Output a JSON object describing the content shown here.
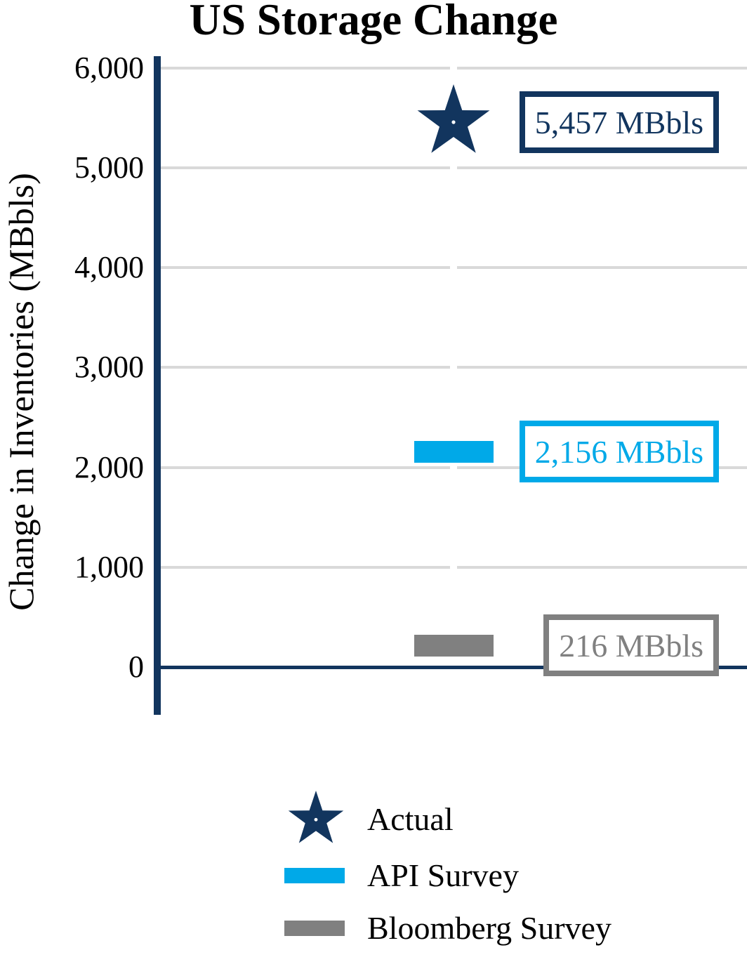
{
  "title": "US Storage Change",
  "chart_data": {
    "type": "bar",
    "title": "US Storage Change",
    "ylabel": "Change in Inventories (MBbls)",
    "xlabel": "",
    "yticks": [
      0,
      1000,
      2000,
      3000,
      4000,
      5000,
      6000
    ],
    "ylim": [
      -500,
      6300
    ],
    "grid": "horizontal",
    "legend_position": "bottom",
    "series": [
      {
        "name": "Actual",
        "marker": "star",
        "value": 5457,
        "label": "5,457 MBbls",
        "color": "#12355E"
      },
      {
        "name": "API Survey",
        "marker": "bar",
        "value": 2156,
        "label": "2,156 MBbls",
        "color": "#00A9E8"
      },
      {
        "name": "Bloomberg Survey",
        "marker": "bar",
        "value": 216,
        "label": "216 MBbls",
        "color": "#808080"
      }
    ]
  },
  "colors": {
    "axis": "#12355E",
    "zero_line": "#12355E",
    "gridline": "#D9D9D9",
    "background": "#FFFFFF",
    "text": "#000000"
  }
}
